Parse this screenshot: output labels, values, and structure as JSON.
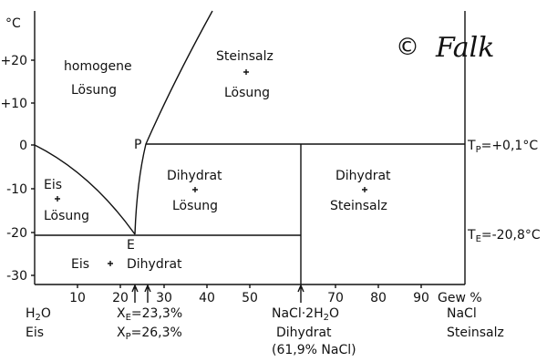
{
  "axis": {
    "y_unit": "°C",
    "y_ticks": [
      "+20",
      "+10",
      "0",
      "-10",
      "-20",
      "-30"
    ],
    "x_ticks": [
      "10",
      "20",
      "30",
      "40",
      "50",
      "70",
      "80",
      "90"
    ],
    "x_unit": "Gew %"
  },
  "regions": {
    "liquid": [
      "homogene",
      "Lösung"
    ],
    "salt_solution": [
      "Steinsalz",
      "Lösung"
    ],
    "dihydrate_solution": [
      "Dihydrat",
      "Lösung"
    ],
    "ice_solution": [
      "Eis",
      "Lösung"
    ],
    "dihydrate_salt": [
      "Dihydrat",
      "Steinsalz"
    ],
    "ice_dihydrate": [
      "Eis",
      "Dihydrat"
    ]
  },
  "points": {
    "P": "P",
    "E": "E"
  },
  "levels": {
    "tp": {
      "symbol": "T",
      "sub": "P",
      "text": "=+0,1°C"
    },
    "te": {
      "symbol": "T",
      "sub": "E",
      "text": "=-20,8°C"
    }
  },
  "bottom": {
    "water": [
      "H",
      "2",
      "O",
      "Eis"
    ],
    "xe": {
      "symbol": "X",
      "sub": "E",
      "text": "=23,3%"
    },
    "xp": {
      "symbol": "X",
      "sub": "P",
      "text": "=26,3%"
    },
    "dihydrate": [
      "NaCl·2H",
      "2",
      "O",
      "Dihydrat",
      "(61,9% NaCl)"
    ],
    "salt": [
      "NaCl",
      "Steinsalz"
    ]
  },
  "copyright": {
    "symbol": "©",
    "signature": "Falk"
  }
}
